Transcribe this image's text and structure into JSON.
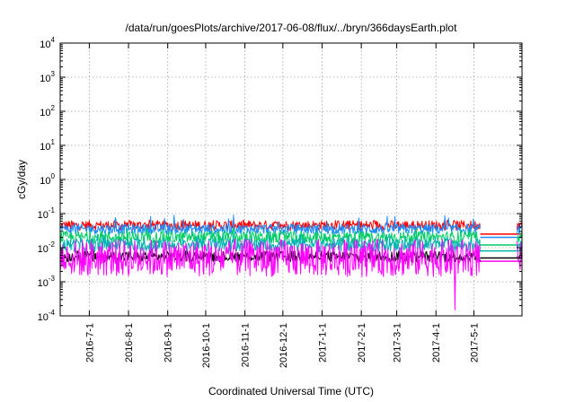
{
  "chart_data": {
    "type": "line",
    "title": "/data/run/goesPlots/archive/2017-06-08/flux/../bryn/366daysEarth.plot",
    "xlabel": "Coordinated Universal Time (UTC)",
    "ylabel": "cGy/day",
    "yscale": "log",
    "ylim": [
      0.0001,
      10000
    ],
    "y_ticks": [
      {
        "base": "10",
        "exp": "-4",
        "value": 0.0001
      },
      {
        "base": "10",
        "exp": "-3",
        "value": 0.001
      },
      {
        "base": "10",
        "exp": "-2",
        "value": 0.01
      },
      {
        "base": "10",
        "exp": "-1",
        "value": 0.1
      },
      {
        "base": "10",
        "exp": "0",
        "value": 1
      },
      {
        "base": "10",
        "exp": "1",
        "value": 10
      },
      {
        "base": "10",
        "exp": "2",
        "value": 100
      },
      {
        "base": "10",
        "exp": "3",
        "value": 1000
      },
      {
        "base": "10",
        "exp": "4",
        "value": 10000
      }
    ],
    "xlim": [
      "2016-06-08",
      "2017-06-08"
    ],
    "x_ticks": [
      "2016-7-1",
      "2016-8-1",
      "2016-9-1",
      "2016-10-1",
      "2016-11-1",
      "2016-12-1",
      "2017-1-1",
      "2017-2-1",
      "2017-3-1",
      "2017-4-1",
      "2017-5-1"
    ],
    "x_tick_dates": [
      "2016-07-01",
      "2016-08-01",
      "2016-09-01",
      "2016-10-01",
      "2016-11-01",
      "2016-12-01",
      "2017-01-01",
      "2017-02-01",
      "2017-03-01",
      "2017-04-01",
      "2017-05-01"
    ],
    "grid": true,
    "legend": "none",
    "data_gap": [
      "2017-05-06",
      "2017-06-04"
    ],
    "series": [
      {
        "color": "#ff0000",
        "typical": 0.045,
        "spread": 0.0025,
        "spike_max": 0.065,
        "spike_date": "2016-10-23",
        "level_end": 0.025
      },
      {
        "color": "#1a8cff",
        "typical": 0.035,
        "spread": 0.0022,
        "spike_max": 0.09,
        "spike_date": "2016-10-23",
        "level_end": 0.02
      },
      {
        "color": "#00cc66",
        "typical": 0.02,
        "spread": 0.0025,
        "spike_max": 0.04,
        "spike_date": "2016-10-23",
        "level_end": 0.012
      },
      {
        "color": "#00b3b3",
        "typical": 0.012,
        "spread": 0.002,
        "spike_max": 0.025,
        "spike_date": "2016-10-23",
        "level_end": 0.008
      },
      {
        "color": "#000000",
        "typical": 0.0055,
        "spread": 0.0005,
        "spike_max": 0.0055,
        "spike_date": "2016-10-23",
        "level_end": 0.005
      },
      {
        "color": "#ff00ff",
        "typical": 0.005,
        "spread": 0.0045,
        "spike_max": 0.012,
        "spike_date": "2016-10-23",
        "level_end": 0.004,
        "min_dip": 0.00015,
        "min_dip_date": "2017-04-16",
        "other_dip": 0.0018,
        "other_dip_date": "2016-10-06"
      }
    ]
  }
}
